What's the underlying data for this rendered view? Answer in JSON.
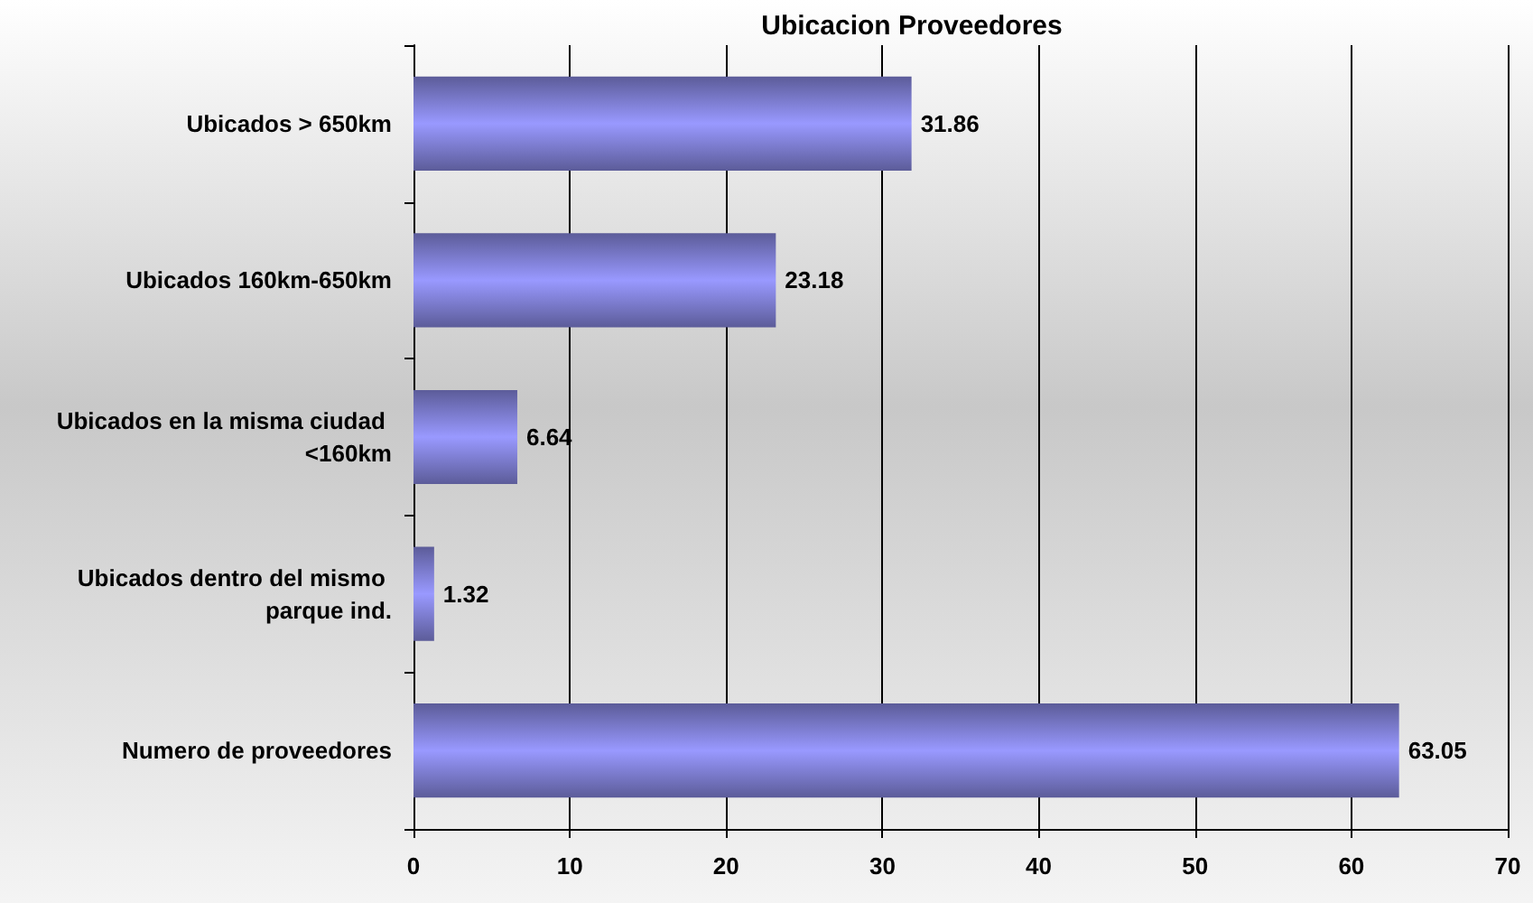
{
  "chart_data": {
    "type": "bar",
    "orientation": "horizontal",
    "title": "Ubicacion Proveedores",
    "categories": [
      "Ubicados > 650km",
      "Ubicados 160km-650km",
      "Ubicados en la misma ciudad <160km",
      "Ubicados dentro del mismo parque ind.",
      "Numero de proveedores"
    ],
    "values": [
      31.86,
      23.18,
      6.64,
      1.32,
      63.05
    ],
    "color": "#9999ff",
    "xlim": [
      0,
      70
    ],
    "xticks": [
      0,
      10,
      20,
      30,
      40,
      50,
      60,
      70
    ],
    "grid": "x",
    "data_labels": true
  }
}
